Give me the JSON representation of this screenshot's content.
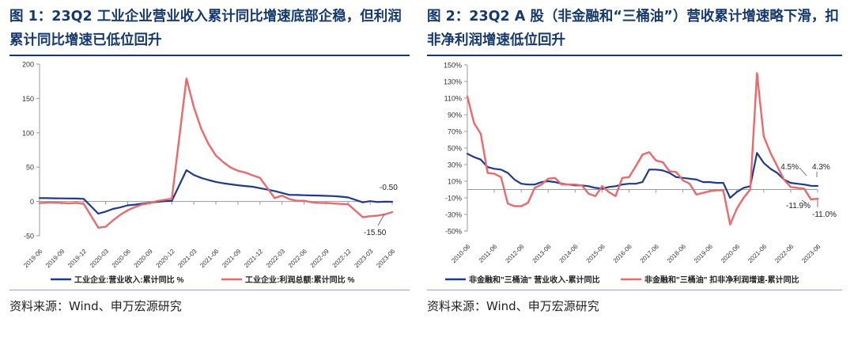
{
  "figure1": {
    "title": "图 1：23Q2 工业企业营业收入累计同比增速底部企稳，但利润累计同比增速已低位回升",
    "source": "资料来源：Wind、申万宏源研究"
  },
  "figure2": {
    "title": "图 2：23Q2 A 股（非金融和“三桶油”）营收累计增速略下滑，扣非净利润增速低位回升",
    "source": "资料来源：Wind、申万宏源研究"
  },
  "colors": {
    "title": "#15386f",
    "series_blue": "#1f3a8a",
    "series_red": "#e8696e",
    "grid_axis": "#999999"
  },
  "chart_data": [
    {
      "type": "line",
      "ylim": [
        -50,
        200
      ],
      "yticks": [
        -50,
        0,
        50,
        100,
        150,
        200
      ],
      "ytick_labels": [
        "-50",
        "0",
        "50",
        "100",
        "150",
        "200"
      ],
      "xtick_labels": [
        "2019-06",
        "2019-09",
        "2019-12",
        "2020-03",
        "2020-06",
        "2020-09",
        "2020-12",
        "2021-03",
        "2021-06",
        "2021-09",
        "2021-12",
        "2022-03",
        "2022-06",
        "2022-09",
        "2022-12",
        "2023-03",
        "2023-06"
      ],
      "x": [
        "2019-06",
        "2019-07",
        "2019-08",
        "2019-09",
        "2019-10",
        "2019-11",
        "2019-12",
        "2020-02",
        "2020-03",
        "2020-04",
        "2020-05",
        "2020-06",
        "2020-07",
        "2020-08",
        "2020-09",
        "2020-10",
        "2020-11",
        "2020-12",
        "2021-02",
        "2021-03",
        "2021-04",
        "2021-05",
        "2021-06",
        "2021-07",
        "2021-08",
        "2021-09",
        "2021-10",
        "2021-11",
        "2021-12",
        "2022-02",
        "2022-03",
        "2022-04",
        "2022-05",
        "2022-06",
        "2022-07",
        "2022-08",
        "2022-09",
        "2022-10",
        "2022-11",
        "2022-12",
        "2023-02",
        "2023-03",
        "2023-04",
        "2023-05",
        "2023-06"
      ],
      "series": [
        {
          "name": "工业企业:营业收入:累计同比 %",
          "color": "#1f3a8a",
          "values": [
            5.0,
            4.8,
            4.6,
            4.5,
            4.4,
            4.3,
            3.8,
            -17.7,
            -14.8,
            -10.8,
            -8.6,
            -5.6,
            -4.6,
            -3.2,
            -1.9,
            -0.6,
            0.4,
            0.8,
            45.6,
            38.6,
            34.3,
            31.2,
            28.5,
            26.5,
            25.0,
            23.6,
            22.5,
            21.4,
            19.4,
            15.2,
            12.5,
            9.6,
            9.5,
            9.1,
            8.7,
            8.6,
            8.2,
            7.8,
            7.0,
            5.9,
            -1.3,
            0.5,
            -0.8,
            -0.4,
            -0.5
          ]
        },
        {
          "name": "工业企业:利润总额:累计同比 %",
          "color": "#e8696e",
          "values": [
            -2.4,
            -1.7,
            -1.7,
            -2.1,
            -2.9,
            -2.1,
            -3.3,
            -38.3,
            -36.7,
            -27.4,
            -19.3,
            -12.8,
            -8.1,
            -4.4,
            -2.4,
            0.7,
            2.4,
            4.1,
            178.9,
            137.3,
            106.0,
            83.4,
            66.9,
            57.3,
            49.5,
            44.7,
            42.2,
            38.0,
            34.3,
            5.0,
            8.5,
            3.5,
            1.0,
            1.0,
            -1.1,
            -2.1,
            -2.3,
            -3.0,
            -3.6,
            -4.0,
            -22.9,
            -21.4,
            -20.6,
            -18.8,
            -15.5
          ]
        }
      ],
      "annotations": [
        {
          "text": "-0.50"
        },
        {
          "text": "-15.50"
        }
      ],
      "grid": false,
      "legend": "bottom"
    },
    {
      "type": "line",
      "ylim": [
        -50,
        150
      ],
      "yticks": [
        -50,
        -30,
        -10,
        10,
        30,
        50,
        70,
        90,
        110,
        130,
        150
      ],
      "ytick_labels": [
        "-50%",
        "-30%",
        "-10%",
        "10%",
        "30%",
        "50%",
        "70%",
        "90%",
        "110%",
        "130%",
        "150%"
      ],
      "xtick_labels": [
        "2010-06",
        "2011-06",
        "2012-06",
        "2013-06",
        "2014-06",
        "2015-06",
        "2016-06",
        "2017-06",
        "2018-06",
        "2019-06",
        "2020-06",
        "2021-06",
        "2022-06",
        "2023-06"
      ],
      "x": [
        "2010-06",
        "2010-09",
        "2010-12",
        "2011-03",
        "2011-06",
        "2011-09",
        "2011-12",
        "2012-03",
        "2012-06",
        "2012-09",
        "2012-12",
        "2013-03",
        "2013-06",
        "2013-09",
        "2013-12",
        "2014-03",
        "2014-06",
        "2014-09",
        "2014-12",
        "2015-03",
        "2015-06",
        "2015-09",
        "2015-12",
        "2016-03",
        "2016-06",
        "2016-09",
        "2016-12",
        "2017-03",
        "2017-06",
        "2017-09",
        "2017-12",
        "2018-03",
        "2018-06",
        "2018-09",
        "2018-12",
        "2019-03",
        "2019-06",
        "2019-09",
        "2019-12",
        "2020-03",
        "2020-06",
        "2020-09",
        "2020-12",
        "2021-03",
        "2021-06",
        "2021-09",
        "2021-12",
        "2022-03",
        "2022-06",
        "2022-09",
        "2022-12",
        "2023-03",
        "2023-06"
      ],
      "series": [
        {
          "name": "非金融和\"三桶油\" 营业收入-累计同比",
          "color": "#1f3a8a",
          "values": [
            43,
            39,
            36,
            27,
            25,
            24,
            20,
            12,
            7,
            6,
            6,
            9,
            10,
            9,
            7,
            6,
            5,
            5,
            4,
            2,
            1,
            3,
            4,
            6,
            7,
            7,
            9,
            24,
            24,
            23,
            20,
            15,
            14,
            13,
            12,
            9,
            9,
            8,
            8,
            -10,
            -3,
            2,
            4,
            44,
            32,
            25,
            20,
            12,
            8,
            7,
            6,
            4.5,
            4.3
          ]
        },
        {
          "name": "非金融和\"三桶油\" 扣非净利润增速-累计同比",
          "color": "#e8696e",
          "values": [
            112,
            80,
            67,
            20,
            19,
            15,
            -17,
            -20,
            -20,
            -16,
            2,
            6,
            13,
            14,
            6,
            6,
            6,
            5,
            -5,
            -8,
            4,
            -3,
            -8,
            14,
            15,
            28,
            42,
            45,
            35,
            33,
            22,
            21,
            11,
            7,
            -6,
            -4,
            -2,
            -1,
            -1,
            -42,
            -23,
            -10,
            0,
            140,
            64,
            44,
            28,
            12,
            3,
            2,
            1,
            -11.9,
            -11.0
          ]
        }
      ],
      "annotations": [
        {
          "text": "4.5%"
        },
        {
          "text": "4.3%"
        },
        {
          "text": "-11.9%"
        },
        {
          "text": "-11.0%"
        }
      ],
      "grid": false,
      "legend": "bottom"
    }
  ]
}
